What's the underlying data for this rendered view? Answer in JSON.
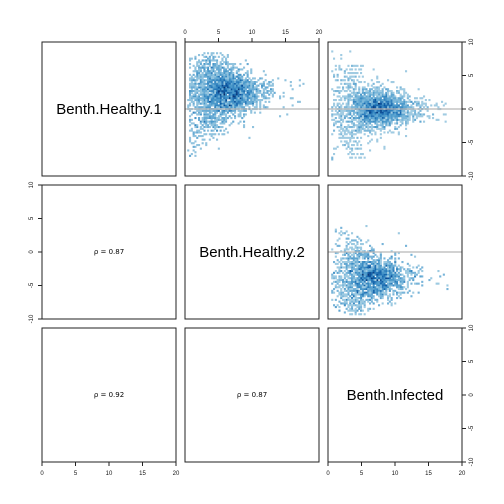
{
  "chart_data": {
    "type": "scatter",
    "layout": "pairs-matrix",
    "variables": [
      "Benth.Healthy.1",
      "Benth.Healthy.2",
      "Benth.Infected"
    ],
    "x_axis": {
      "lim": [
        0,
        20
      ],
      "ticks": [
        "0",
        "5",
        "10",
        "15",
        "20"
      ]
    },
    "y_axis": {
      "lim": [
        -10,
        10
      ],
      "ticks": [
        "-10",
        "-5",
        "0",
        "5",
        "10"
      ]
    },
    "correlations": [
      {
        "row": 2,
        "col": 1,
        "label": "ρ = 0.87"
      },
      {
        "row": 3,
        "col": 1,
        "label": "ρ = 0.92"
      },
      {
        "row": 3,
        "col": 2,
        "label": "ρ = 0.87"
      }
    ],
    "smooth_scatter_panels": [
      {
        "row": 1,
        "col": 2,
        "center_x": 5.8,
        "center_y": 2.5,
        "spread_x": 2.5,
        "spread_y": 1.6,
        "x_range": [
          0.5,
          18
        ],
        "y_range": [
          -7,
          8
        ],
        "reference_y": 0
      },
      {
        "row": 1,
        "col": 3,
        "center_x": 7.5,
        "center_y": 0,
        "spread_x": 2.5,
        "spread_y": 1.3,
        "x_range": [
          0.5,
          18
        ],
        "y_range": [
          -8,
          9
        ],
        "reference_y": 0
      },
      {
        "row": 2,
        "col": 3,
        "center_x": 6.5,
        "center_y": -3.8,
        "spread_x": 2.5,
        "spread_y": 1.5,
        "x_range": [
          0.5,
          18
        ],
        "y_range": [
          -9,
          4
        ],
        "reference_y": 0
      }
    ],
    "colors": {
      "density_low": "#deebf7",
      "density_mid": "#6baed6",
      "density_high": "#08306b",
      "reference_line": "#b8b8b8"
    }
  }
}
